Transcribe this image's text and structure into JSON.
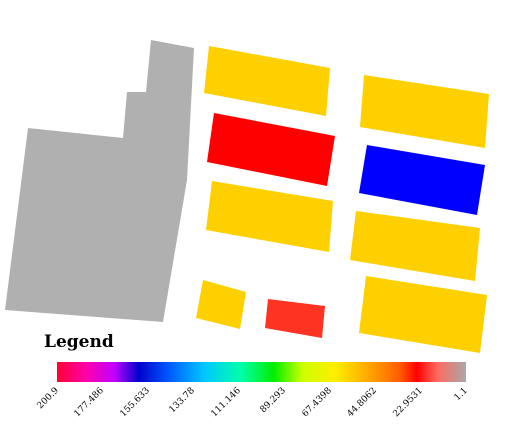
{
  "legend": {
    "title": "Legend",
    "ticks": [
      "200.9",
      "177.486",
      "155.633",
      "133.78",
      "111.146",
      "89.293",
      "67.4398",
      "44.8062",
      "22.9531",
      "1.1"
    ],
    "gradient_stops": [
      {
        "offset": 0.0,
        "color": "#ff0033"
      },
      {
        "offset": 0.07,
        "color": "#ff00aa"
      },
      {
        "offset": 0.14,
        "color": "#c000ff"
      },
      {
        "offset": 0.2,
        "color": "#0000cc"
      },
      {
        "offset": 0.27,
        "color": "#0055ff"
      },
      {
        "offset": 0.36,
        "color": "#00c8ff"
      },
      {
        "offset": 0.45,
        "color": "#00ffaa"
      },
      {
        "offset": 0.53,
        "color": "#00ee00"
      },
      {
        "offset": 0.6,
        "color": "#ccff00"
      },
      {
        "offset": 0.68,
        "color": "#ffee00"
      },
      {
        "offset": 0.76,
        "color": "#ffaa00"
      },
      {
        "offset": 0.84,
        "color": "#ff5a00"
      },
      {
        "offset": 0.88,
        "color": "#ff0000"
      },
      {
        "offset": 0.93,
        "color": "#ff6a60"
      },
      {
        "offset": 1.0,
        "color": "#a8a8a8"
      }
    ]
  },
  "map": {
    "features": [
      {
        "name": "parcel-gray-large",
        "color": "#b0b0b0"
      },
      {
        "name": "parcel-yellow-top-center",
        "color": "#ffd000"
      },
      {
        "name": "parcel-red-center",
        "color": "#ff0000"
      },
      {
        "name": "parcel-yellow-mid-center",
        "color": "#ffd000"
      },
      {
        "name": "parcel-yellow-small-bottom",
        "color": "#ffd000"
      },
      {
        "name": "parcel-orange-red-small",
        "color": "#ff3322"
      },
      {
        "name": "parcel-yellow-top-right",
        "color": "#ffd000"
      },
      {
        "name": "parcel-blue-right",
        "color": "#0000ff"
      },
      {
        "name": "parcel-yellow-mid-right",
        "color": "#ffd000"
      },
      {
        "name": "parcel-yellow-bottom-right",
        "color": "#ffd000"
      }
    ]
  }
}
